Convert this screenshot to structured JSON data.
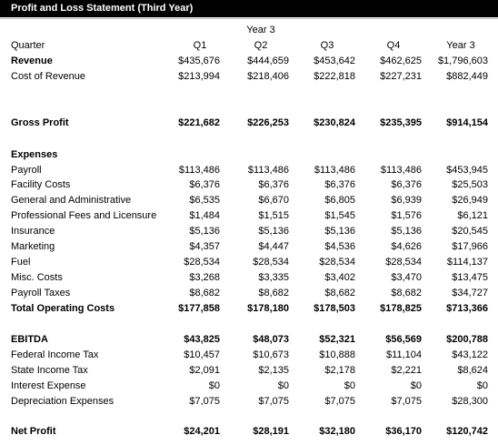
{
  "header": {
    "title": "Profit and Loss Statement (Third Year)",
    "group_label": "Year 3",
    "row_header": "Quarter",
    "columns": [
      "Q1",
      "Q2",
      "Q3",
      "Q4",
      "Year 3"
    ]
  },
  "rows": [
    {
      "label": "Revenue",
      "values": [
        "$435,676",
        "$444,659",
        "$453,642",
        "$462,625",
        "$1,796,603"
      ]
    },
    {
      "label": "Cost of Revenue",
      "values": [
        "$213,994",
        "$218,406",
        "$222,818",
        "$227,231",
        "$882,449"
      ]
    },
    {
      "label": "Gross Profit",
      "values": [
        "$221,682",
        "$226,253",
        "$230,824",
        "$235,395",
        "$914,154"
      ]
    },
    {
      "label": "Expenses"
    },
    {
      "label": "Payroll",
      "values": [
        "$113,486",
        "$113,486",
        "$113,486",
        "$113,486",
        "$453,945"
      ]
    },
    {
      "label": "Facility Costs",
      "values": [
        "$6,376",
        "$6,376",
        "$6,376",
        "$6,376",
        "$25,503"
      ]
    },
    {
      "label": "General and Administrative",
      "values": [
        "$6,535",
        "$6,670",
        "$6,805",
        "$6,939",
        "$26,949"
      ]
    },
    {
      "label": "Professional Fees and Licensure",
      "values": [
        "$1,484",
        "$1,515",
        "$1,545",
        "$1,576",
        "$6,121"
      ]
    },
    {
      "label": "Insurance",
      "values": [
        "$5,136",
        "$5,136",
        "$5,136",
        "$5,136",
        "$20,545"
      ]
    },
    {
      "label": "Marketing",
      "values": [
        "$4,357",
        "$4,447",
        "$4,536",
        "$4,626",
        "$17,966"
      ]
    },
    {
      "label": "Fuel",
      "values": [
        "$28,534",
        "$28,534",
        "$28,534",
        "$28,534",
        "$114,137"
      ]
    },
    {
      "label": "Misc. Costs",
      "values": [
        "$3,268",
        "$3,335",
        "$3,402",
        "$3,470",
        "$13,475"
      ]
    },
    {
      "label": "Payroll Taxes",
      "values": [
        "$8,682",
        "$8,682",
        "$8,682",
        "$8,682",
        "$34,727"
      ]
    },
    {
      "label": "Total Operating Costs",
      "values": [
        "$177,858",
        "$178,180",
        "$178,503",
        "$178,825",
        "$713,366"
      ]
    },
    {
      "label": "EBITDA",
      "values": [
        "$43,825",
        "$48,073",
        "$52,321",
        "$56,569",
        "$200,788"
      ]
    },
    {
      "label": "Federal Income Tax",
      "values": [
        "$10,457",
        "$10,673",
        "$10,888",
        "$11,104",
        "$43,122"
      ]
    },
    {
      "label": "State Income Tax",
      "values": [
        "$2,091",
        "$2,135",
        "$2,178",
        "$2,221",
        "$8,624"
      ]
    },
    {
      "label": "Interest Expense",
      "values": [
        "$0",
        "$0",
        "$0",
        "$0",
        "$0"
      ]
    },
    {
      "label": "Depreciation Expenses",
      "values": [
        "$7,075",
        "$7,075",
        "$7,075",
        "$7,075",
        "$28,300"
      ]
    },
    {
      "label": "Net Profit",
      "values": [
        "$24,201",
        "$28,191",
        "$32,180",
        "$36,170",
        "$120,742"
      ]
    }
  ]
}
